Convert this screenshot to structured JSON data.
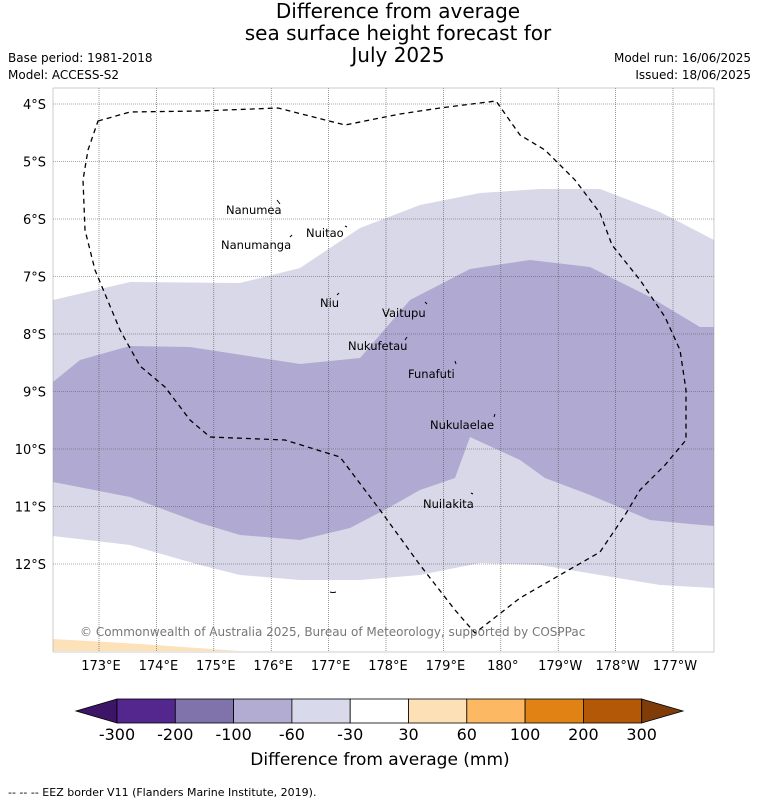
{
  "header": {
    "title_lines": [
      "Difference from average",
      "sea surface height forecast for",
      "July 2025"
    ],
    "base_period": "Base period: 1981-2018",
    "model": "Model: ACCESS-S2",
    "model_run": "Model run: 16/06/2025",
    "issued": "Issued: 18/06/2025"
  },
  "map": {
    "lat_labels": [
      "4°S",
      "5°S",
      "6°S",
      "7°S",
      "8°S",
      "9°S",
      "10°S",
      "11°S",
      "12°S"
    ],
    "lon_labels": [
      "173°E",
      "174°E",
      "175°E",
      "176°E",
      "177°E",
      "178°E",
      "179°E",
      "180°",
      "179°W",
      "178°W",
      "177°W"
    ],
    "islands": [
      "Nanumea",
      "Nanumanga",
      "Nuitao",
      "Niu",
      "Vaitupu",
      "Nukufetau",
      "Funafuti",
      "Nukulaelae",
      "Nuilakita"
    ],
    "copyright": "© Commonwealth of Australia 2025, Bureau of Meteorology, supported by COSPPac",
    "eez_color": "#000000",
    "shading_colors": {
      "-100_-60": "#b0aad2",
      "-60_-30": "#d8d8e8",
      "30_60": "#fde1b8"
    }
  },
  "colorbar": {
    "tick_labels": [
      "-300",
      "-200",
      "-100",
      "-60",
      "-30",
      "30",
      "60",
      "100",
      "200",
      "300"
    ],
    "colors": [
      "#3d1566",
      "#54278f",
      "#8073ac",
      "#b2abd2",
      "#d8daeb",
      "#ffffff",
      "#fee0b6",
      "#fdb863",
      "#e08214",
      "#b35806",
      "#7f3b08"
    ],
    "title": "Difference from average (mm)"
  },
  "footnote": "--  --  -- EEZ border V11 (Flanders Marine Institute, 2019)."
}
